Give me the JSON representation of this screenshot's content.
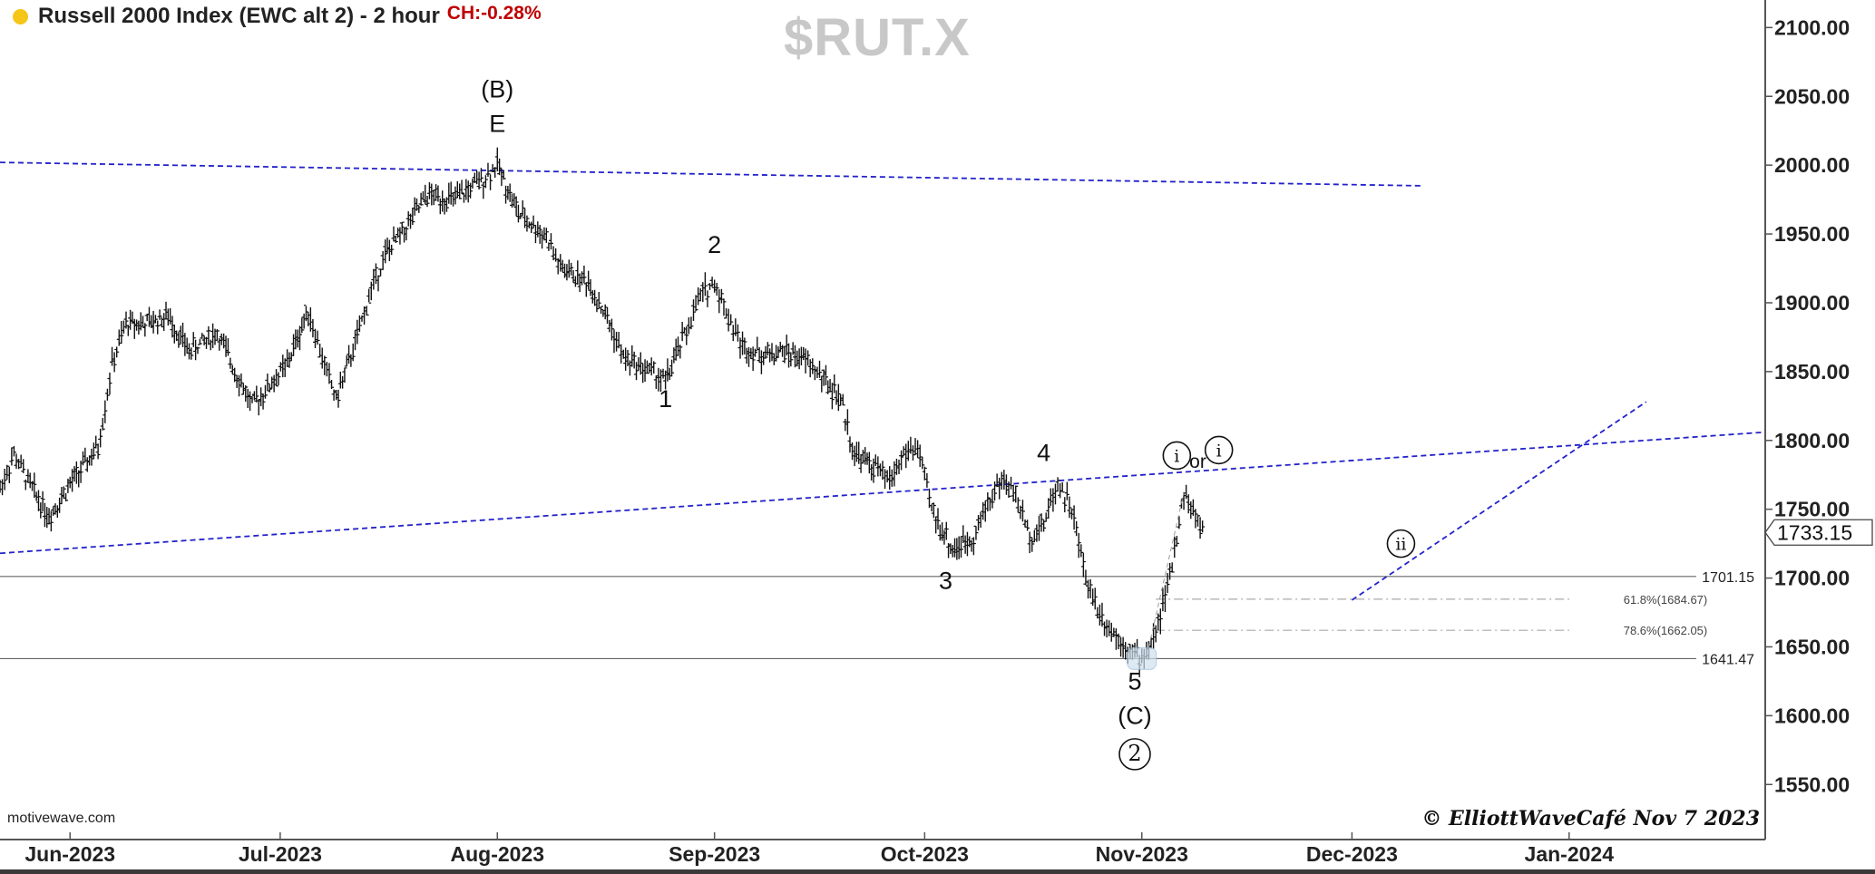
{
  "header": {
    "title": "Russell 2000 Index (EWC alt 2) - 2 hour",
    "change": "CH:-0.28%",
    "symbol": "$RUT.X",
    "status_dot_color": "#f5c518"
  },
  "footer": {
    "site": "motivewave.com",
    "copyright": "© ElliottWaveCafé Nov 7 2023"
  },
  "chart_data": {
    "type": "ohlc",
    "title": "Russell 2000 Index (EWC alt 2) - 2 hour",
    "ylim": [
      1510,
      2120
    ],
    "y_ticks": [
      1550,
      1600,
      1650,
      1700,
      1750,
      1800,
      1850,
      1900,
      1950,
      2000,
      2050,
      2100
    ],
    "y_tick_labels": [
      "1550.00",
      "1600.00",
      "1650.00",
      "1700.00",
      "1750.00",
      "1800.00",
      "1850.00",
      "1900.00",
      "1950.00",
      "2000.00",
      "2050.00",
      "2100.00"
    ],
    "x_range": [
      "2023-05-22",
      "2024-01-29"
    ],
    "x_ticks": [
      "2023-06-01",
      "2023-07-01",
      "2023-08-01",
      "2023-09-01",
      "2023-10-01",
      "2023-11-01",
      "2023-12-01",
      "2024-01-01"
    ],
    "x_tick_labels": [
      "Jun-2023",
      "Jul-2023",
      "Aug-2023",
      "Sep-2023",
      "Oct-2023",
      "Nov-2023",
      "Dec-2023",
      "Jan-2024"
    ],
    "current_price": "1733.15",
    "price_series": [
      [
        "2023-05-22",
        1765
      ],
      [
        "2023-05-24",
        1790
      ],
      [
        "2023-05-26",
        1770
      ],
      [
        "2023-05-29",
        1745
      ],
      [
        "2023-06-01",
        1768
      ],
      [
        "2023-06-05",
        1795
      ],
      [
        "2023-06-07",
        1855
      ],
      [
        "2023-06-09",
        1885
      ],
      [
        "2023-06-12",
        1885
      ],
      [
        "2023-06-15",
        1890
      ],
      [
        "2023-06-18",
        1865
      ],
      [
        "2023-06-22",
        1878
      ],
      [
        "2023-06-27",
        1825
      ],
      [
        "2023-07-02",
        1855
      ],
      [
        "2023-07-05",
        1895
      ],
      [
        "2023-07-07",
        1860
      ],
      [
        "2023-07-09",
        1830
      ],
      [
        "2023-07-12",
        1875
      ],
      [
        "2023-07-14",
        1910
      ],
      [
        "2023-07-16",
        1935
      ],
      [
        "2023-07-19",
        1955
      ],
      [
        "2023-07-22",
        1978
      ],
      [
        "2023-07-26",
        1975
      ],
      [
        "2023-07-30",
        1990
      ],
      [
        "2023-08-01",
        2000
      ],
      [
        "2023-08-04",
        1965
      ],
      [
        "2023-08-08",
        1948
      ],
      [
        "2023-08-10",
        1925
      ],
      [
        "2023-08-14",
        1915
      ],
      [
        "2023-08-17",
        1885
      ],
      [
        "2023-08-19",
        1860
      ],
      [
        "2023-08-23",
        1850
      ],
      [
        "2023-08-25",
        1843
      ],
      [
        "2023-08-28",
        1880
      ],
      [
        "2023-08-30",
        1905
      ],
      [
        "2023-09-01",
        1915
      ],
      [
        "2023-09-03",
        1890
      ],
      [
        "2023-09-05",
        1868
      ],
      [
        "2023-09-08",
        1862
      ],
      [
        "2023-09-11",
        1865
      ],
      [
        "2023-09-14",
        1858
      ],
      [
        "2023-09-16",
        1848
      ],
      [
        "2023-09-19",
        1830
      ],
      [
        "2023-09-21",
        1790
      ],
      [
        "2023-09-24",
        1780
      ],
      [
        "2023-09-26",
        1770
      ],
      [
        "2023-09-28",
        1790
      ],
      [
        "2023-09-30",
        1795
      ],
      [
        "2023-10-02",
        1750
      ],
      [
        "2023-10-05",
        1720
      ],
      [
        "2023-10-08",
        1730
      ],
      [
        "2023-10-10",
        1755
      ],
      [
        "2023-10-12",
        1772
      ],
      [
        "2023-10-14",
        1760
      ],
      [
        "2023-10-16",
        1730
      ],
      [
        "2023-10-18",
        1740
      ],
      [
        "2023-10-20",
        1770
      ],
      [
        "2023-10-22",
        1750
      ],
      [
        "2023-10-24",
        1700
      ],
      [
        "2023-10-26",
        1675
      ],
      [
        "2023-10-28",
        1660
      ],
      [
        "2023-10-30",
        1650
      ],
      [
        "2023-11-01",
        1640
      ],
      [
        "2023-11-03",
        1660
      ],
      [
        "2023-11-05",
        1700
      ],
      [
        "2023-11-07",
        1762
      ],
      [
        "2023-11-09",
        1740
      ],
      [
        "2023-11-10",
        1733
      ]
    ],
    "trendlines": [
      {
        "from": [
          "2023-05-22",
          2002
        ],
        "to": [
          "2023-12-11",
          1985
        ]
      },
      {
        "from": [
          "2023-05-22",
          1718
        ],
        "to": [
          "2024-01-29",
          1806
        ]
      },
      {
        "from": [
          "2023-12-01",
          1684
        ],
        "to": [
          "2024-01-12",
          1828
        ]
      }
    ],
    "horizontal_levels": [
      {
        "value": 1701.15,
        "label": "1701.15"
      },
      {
        "value": 1641.47,
        "label": "1641.47"
      }
    ],
    "fib_levels": [
      {
        "value": 1684.67,
        "label": "61.8%(1684.67)"
      },
      {
        "value": 1662.05,
        "label": "78.6%(1662.05)"
      }
    ],
    "wave_labels": [
      {
        "text": "(B)",
        "date": "2023-08-01",
        "price": 2055
      },
      {
        "text": "E",
        "date": "2023-08-01",
        "price": 2030
      },
      {
        "text": "1",
        "date": "2023-08-25",
        "price": 1830
      },
      {
        "text": "2",
        "date": "2023-09-01",
        "price": 1942
      },
      {
        "text": "3",
        "date": "2023-10-04",
        "price": 1698
      },
      {
        "text": "4",
        "date": "2023-10-18",
        "price": 1791
      },
      {
        "text": "5",
        "date": "2023-10-31",
        "price": 1625
      },
      {
        "text": "(C)",
        "date": "2023-10-31",
        "price": 1600
      },
      {
        "text": "2",
        "date": "2023-10-31",
        "price": 1572,
        "circled": true
      },
      {
        "text": "i",
        "date": "2023-11-06",
        "price": 1789,
        "circled": true
      },
      {
        "text": "or",
        "date": "2023-11-09",
        "price": 1786
      },
      {
        "text": "i",
        "date": "2023-11-12",
        "price": 1793,
        "circled": true
      },
      {
        "text": "ii",
        "date": "2023-12-08",
        "price": 1725,
        "circled": true
      }
    ]
  }
}
